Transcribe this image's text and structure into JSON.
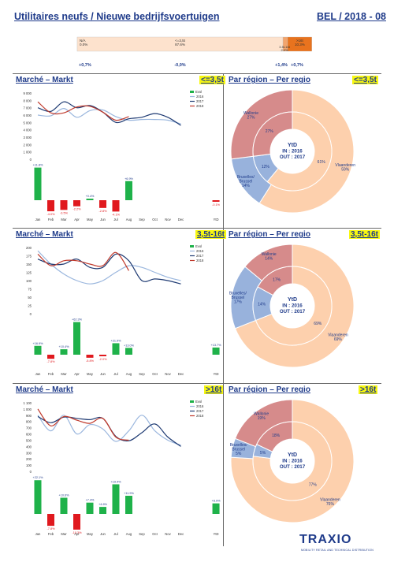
{
  "header": {
    "title": "Utilitaires neufs / Nieuwe bedrijfsvoertuigen",
    "right": "BEL / 2018 - 08"
  },
  "top_bar": {
    "segments": [
      {
        "label": "N/A",
        "value": "0.0%",
        "share": 0.0,
        "color": "#fde2cd"
      },
      {
        "label": "<=3,5t",
        "value": "87.6%",
        "share": 87.6,
        "color": "#fde2cd"
      },
      {
        "label": "3.5t-16t",
        "value": "2.0%",
        "share": 2.0,
        "color": "#f2a46d"
      },
      {
        "label": ">16t",
        "value": "10.3%",
        "share": 10.3,
        "color": "#e8731e"
      }
    ],
    "evol": [
      "+0,7%",
      "-0,0%",
      "+1,4%",
      "+0,7%"
    ]
  },
  "sections": [
    {
      "market_title": "Marché – Markt",
      "region_title": "Par région – Per regio",
      "badge": "<=3,5t",
      "line_chart": {
        "type": "line",
        "yticks": [
          "0",
          "1 000",
          "2 000",
          "3 000",
          "4 000",
          "5 000",
          "6 000",
          "7 000",
          "8 000",
          "9 000"
        ],
        "ylim": [
          0,
          9000
        ],
        "months": [
          "Jan",
          "Feb",
          "Mar",
          "Apr",
          "May",
          "Jun",
          "Jul",
          "Aug",
          "Sep",
          "Oct",
          "Nov",
          "Dec"
        ],
        "ytd_label": "YtD",
        "legend": {
          "evol": "Evol",
          "s2016": "2016",
          "s2017": "2017",
          "s2018": "2018"
        },
        "series": [
          {
            "name": "2016",
            "values": [
              6000,
              5900,
              6900,
              5700,
              6600,
              6700,
              5800,
              5300,
              5400,
              5400,
              5300,
              4800
            ]
          },
          {
            "name": "2017",
            "values": [
              7000,
              6500,
              7800,
              7000,
              7300,
              6400,
              5000,
              5500,
              5700,
              6200,
              5700,
              4600
            ]
          },
          {
            "name": "2018",
            "values": [
              7800,
              6300,
              6300,
              7100,
              7200,
              6400,
              5300,
              5800
            ]
          }
        ],
        "evol": {
          "values": [
            11.8,
            -4.0,
            -3.5,
            -2.2,
            0.4,
            -2.8,
            -4.1,
            6.9
          ],
          "labels": [
            "+11.8%",
            "-4.0%",
            "-3.5%",
            "-2.2%",
            "+0.4%",
            "-2.8%",
            "-4.1%",
            "+6.9%"
          ],
          "ytd": -0.1,
          "ytd_label": "-0.1%"
        }
      },
      "donut": {
        "type": "pie",
        "center": [
          "YtD",
          "IN : 2016",
          "OUT : 2017"
        ],
        "outer": [
          {
            "name": "Vlaanderen",
            "value": 59,
            "label": "Vlaanderen\n59%"
          },
          {
            "name": "Bruxelles/ Brussel",
            "value": 14,
            "label": "Bruxelles/\nBrussel\n14%"
          },
          {
            "name": "Wallonie",
            "value": 27,
            "label": "Wallonie\n27%"
          }
        ],
        "inner": [
          {
            "name": "Vlaanderen",
            "value": 61,
            "label": "61%"
          },
          {
            "name": "Bruxelles/ Brussel",
            "value": 12,
            "label": "12%"
          },
          {
            "name": "Wallonie",
            "value": 27,
            "label": "27%"
          }
        ]
      }
    },
    {
      "market_title": "Marché – Markt",
      "region_title": "Par région – Per regio",
      "badge": "3,5t-16t",
      "line_chart": {
        "type": "line",
        "yticks": [
          "0",
          "25",
          "50",
          "75",
          "100",
          "125",
          "150",
          "175",
          "200"
        ],
        "ylim": [
          0,
          200
        ],
        "months": [
          "Jan",
          "Feb",
          "Mar",
          "Apr",
          "May",
          "Jun",
          "Jul",
          "Aug",
          "Sep",
          "Oct",
          "Nov",
          "Dec"
        ],
        "ytd_label": "YtD",
        "legend": {
          "evol": "Evol",
          "s2016": "2016",
          "s2017": "2017",
          "s2018": "2018"
        },
        "series": [
          {
            "name": "2016",
            "values": [
              190,
              150,
              120,
              100,
              90,
              100,
              125,
              145,
              140,
              125,
              110,
              100
            ]
          },
          {
            "name": "2017",
            "values": [
              165,
              150,
              150,
              165,
              140,
              140,
              180,
              160,
              100,
              105,
              100,
              90
            ]
          },
          {
            "name": "2018",
            "values": [
              180,
              145,
              160,
              160,
              150,
              145,
              185,
              130
            ]
          }
        ],
        "evol": {
          "values": [
            16.9,
            -7.8,
            10.4,
            62.3,
            -5.8,
            -2.0,
            21.9,
            13.0
          ],
          "labels": [
            "+16.9%",
            "-7.8%",
            "+10.4%",
            "+62.3%",
            "-5.8%",
            "-2.0%",
            "+21.9%",
            "+13.0%"
          ],
          "ytd": 13.7,
          "ytd_label": "+13.7%"
        }
      },
      "donut": {
        "type": "pie",
        "center": [
          "YtD",
          "IN : 2016",
          "OUT : 2017"
        ],
        "outer": [
          {
            "name": "Vlaanderen",
            "value": 69,
            "label": "Vlaanderen\n69%"
          },
          {
            "name": "Bruxelles/ Brussel",
            "value": 17,
            "label": "Bruxelles/\nBrussel\n17%"
          },
          {
            "name": "Wallonie",
            "value": 14,
            "label": "Wallonie\n14%"
          }
        ],
        "inner": [
          {
            "name": "Vlaanderen",
            "value": 69,
            "label": "69%"
          },
          {
            "name": "Bruxelles/ Brussel",
            "value": 14,
            "label": "14%"
          },
          {
            "name": "Wallonie",
            "value": 17,
            "label": "17%"
          }
        ]
      }
    },
    {
      "market_title": "Marché – Markt",
      "region_title": "Par région – Per regio",
      "badge": ">16t",
      "line_chart": {
        "type": "line",
        "yticks": [
          "0",
          "100",
          "200",
          "300",
          "400",
          "500",
          "600",
          "700",
          "800",
          "900",
          "1 000",
          "1 100"
        ],
        "ylim": [
          0,
          1100
        ],
        "months": [
          "Jan",
          "Feb",
          "Mar",
          "Apr",
          "May",
          "Jun",
          "Jul",
          "Aug",
          "Sep",
          "Oct",
          "Nov",
          "Dec"
        ],
        "ytd_label": "YtD",
        "legend": {
          "evol": "Evol",
          "s2016": "2016",
          "s2017": "2017",
          "s2018": "2018"
        },
        "series": [
          {
            "name": "2016",
            "values": [
              900,
              650,
              900,
              600,
              750,
              680,
              480,
              650,
              900,
              650,
              500,
              420
            ]
          },
          {
            "name": "2017",
            "values": [
              880,
              780,
              870,
              850,
              830,
              850,
              560,
              490,
              620,
              760,
              550,
              400
            ]
          },
          {
            "name": "2018",
            "values": [
              1000,
              730,
              880,
              820,
              770,
              850,
              550,
              500
            ]
          }
        ],
        "evol": {
          "values": [
            22.1,
            -7.8,
            10.6,
            -10.3,
            7.4,
            4.6,
            19.4,
            11.9
          ],
          "labels": [
            "+22.1%",
            "-7.8%",
            "+10.6%",
            "-10.3%",
            "+7.4%",
            "+4.6%",
            "+19.4%",
            "+11.9%"
          ],
          "ytd": 6.9,
          "ytd_label": "+6.9%"
        }
      },
      "donut": {
        "type": "pie",
        "center": [
          "YtD",
          "IN : 2016",
          "OUT : 2017"
        ],
        "outer": [
          {
            "name": "Vlaanderen",
            "value": 76,
            "label": "Vlaanderen\n76%"
          },
          {
            "name": "Bruxelles/ Brussel",
            "value": 5,
            "label": "Bruxelles/\nBrussel\n5%"
          },
          {
            "name": "Wallonie",
            "value": 19,
            "label": "Wallonie\n19%"
          }
        ],
        "inner": [
          {
            "name": "Vlaanderen",
            "value": 77,
            "label": "77%"
          },
          {
            "name": "Bruxelles/ Brussel",
            "value": 5,
            "label": "5%"
          },
          {
            "name": "Wallonie",
            "value": 18,
            "label": "18%"
          }
        ]
      }
    }
  ],
  "colors": {
    "title": "#1f3b8a",
    "s2016": "#9bb7de",
    "s2017": "#1f3b73",
    "s2018": "#c0392b",
    "evol_pos": "#1fb24a",
    "evol_neg": "#e0191e",
    "vlaanderen": "#fdd0ad",
    "brussel": "#98b2dc",
    "wallonie": "#d68b8b",
    "badge": "#f7f711"
  },
  "logo": {
    "text": "TRAXIO",
    "subtitle": "MOBILITY RETAIL AND TECHNICAL DISTRIBUTION"
  }
}
